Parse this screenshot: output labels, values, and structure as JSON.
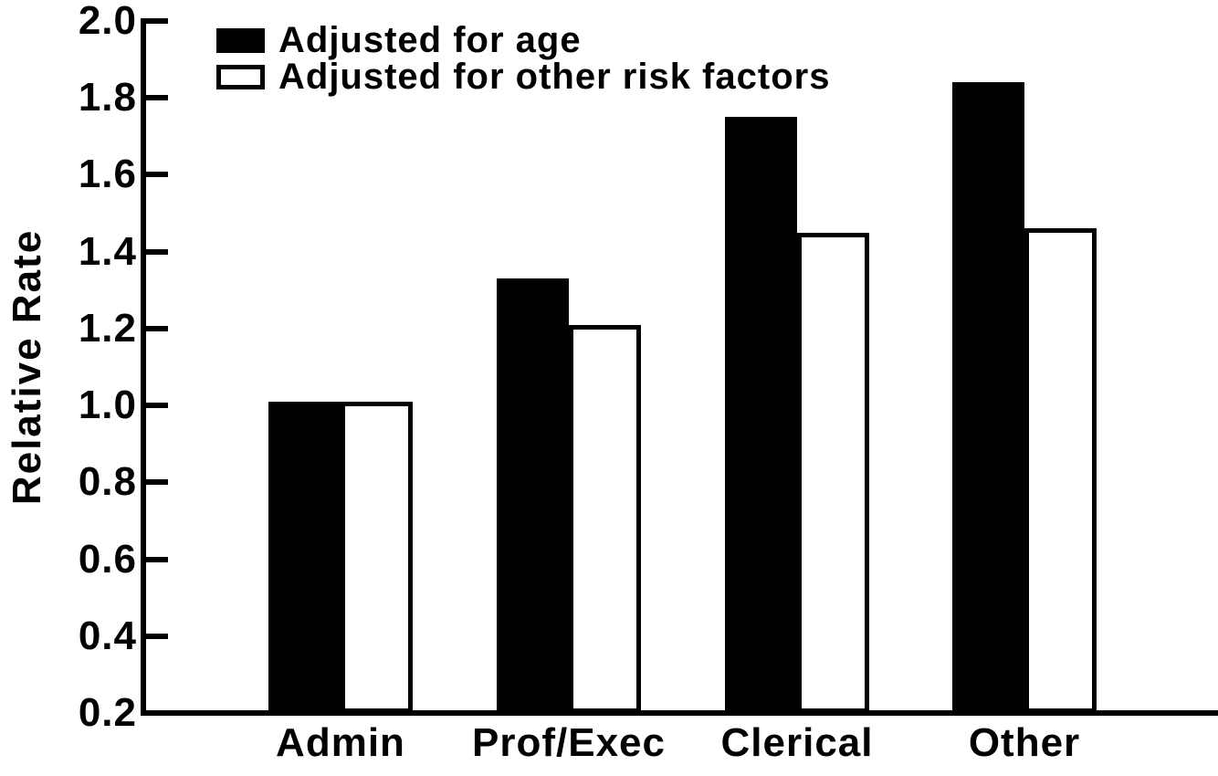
{
  "chart_data": {
    "type": "bar",
    "title": "",
    "xlabel": "",
    "ylabel": "Relative Rate",
    "categories": [
      "Admin",
      "Prof/Exec",
      "Clerical",
      "Other"
    ],
    "series": [
      {
        "name": "Adjusted for age",
        "style": "filled",
        "color": "#000000",
        "values": [
          1.01,
          1.33,
          1.75,
          1.84
        ]
      },
      {
        "name": "Adjusted for other risk factors",
        "style": "open",
        "color": "#ffffff",
        "values": [
          1.01,
          1.21,
          1.45,
          1.46
        ]
      }
    ],
    "ylim": [
      0.2,
      2.0
    ],
    "ytick_step": 0.2,
    "ytick_labels": [
      "2.0",
      "1.8",
      "1.6",
      "1.4",
      "1.2",
      "1.0",
      "0.8",
      "0.6",
      "0.4",
      "0.2"
    ],
    "grid": false,
    "legend_position": "top-left",
    "axis_color": "#000000",
    "bar_outline_color": "#000000",
    "background_color": "#ffffff"
  }
}
